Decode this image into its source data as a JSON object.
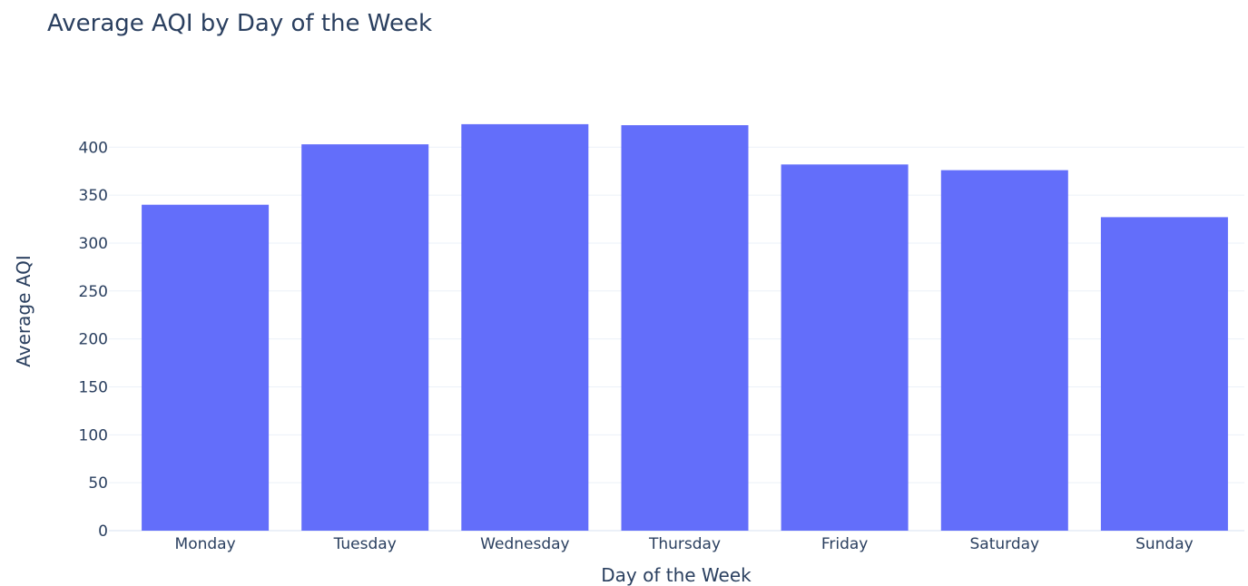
{
  "chart_data": {
    "type": "bar",
    "title": "Average AQI by Day of the Week",
    "xlabel": "Day of the Week",
    "ylabel": "Average AQI",
    "categories": [
      "Monday",
      "Tuesday",
      "Wednesday",
      "Thursday",
      "Friday",
      "Saturday",
      "Sunday"
    ],
    "values": [
      340,
      403,
      424,
      423,
      382,
      376,
      327
    ],
    "ylim": [
      0,
      440
    ],
    "yticks": [
      0,
      50,
      100,
      150,
      200,
      250,
      300,
      350,
      400
    ],
    "grid": true,
    "bar_color": "#636efa"
  }
}
